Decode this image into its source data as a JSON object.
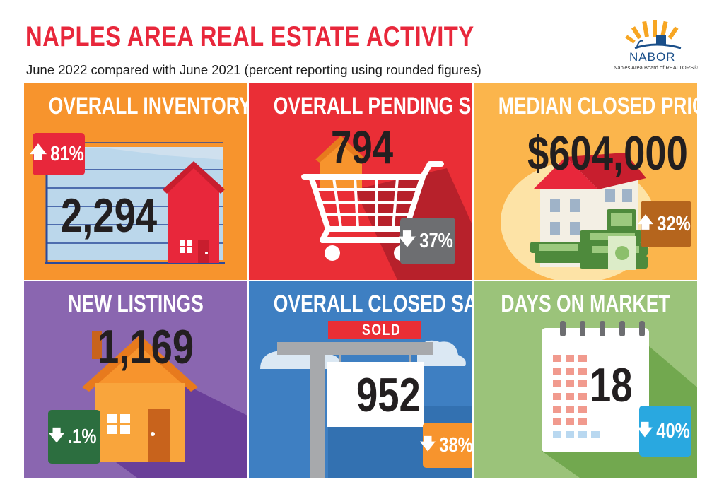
{
  "header": {
    "title": "NAPLES AREA REAL ESTATE ACTIVITY",
    "subtitle": "June 2022 compared with June 2021 (percent reporting using rounded figures)"
  },
  "logo": {
    "name": "NABOR",
    "tagline": "Naples Area Board of REALTORS®"
  },
  "tiles": [
    {
      "title": "OVERALL INVENTORY",
      "value": "2,294",
      "change": "81%",
      "direction": "up",
      "color": "#f7942d",
      "badge_color": "#e8273b",
      "icon": "house-chart-icon"
    },
    {
      "title": "OVERALL PENDING SALES",
      "value": "794",
      "change": "37%",
      "direction": "down",
      "color": "#ea2e36",
      "badge_color": "#6d6e71",
      "icon": "shopping-cart-icon"
    },
    {
      "title": "MEDIAN CLOSED PRICE",
      "value": "$604,000",
      "change": "32%",
      "direction": "up",
      "color": "#fbb54c",
      "badge_color": "#b5651d",
      "icon": "house-money-icon"
    },
    {
      "title": "NEW LISTINGS",
      "value": "1,169",
      "change": ".1%",
      "direction": "down",
      "color": "#8a66b0",
      "badge_color": "#2c6e3f",
      "icon": "house-icon"
    },
    {
      "title": "OVERALL CLOSED SALES",
      "value": "952",
      "change": "38%",
      "direction": "down",
      "color": "#3e7fc2",
      "badge_color": "#f7942d",
      "icon": "sold-sign-icon",
      "sign_label": "SOLD"
    },
    {
      "title": "DAYS ON MARKET",
      "value": "18",
      "change": "40%",
      "direction": "down",
      "color": "#9bc37a",
      "badge_color": "#29a8e0",
      "icon": "calendar-icon"
    }
  ],
  "arrows": {
    "up": "🡅",
    "down": "🡇"
  }
}
